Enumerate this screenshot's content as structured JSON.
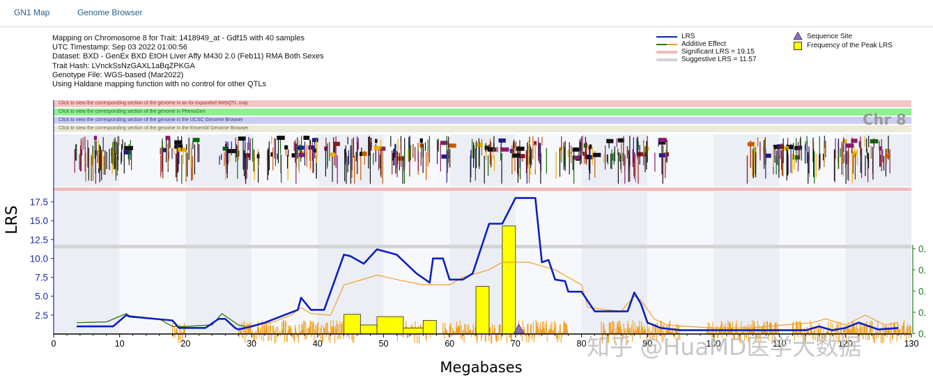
{
  "tabs": [
    {
      "label": "GN1 Map"
    },
    {
      "label": "Genome Browser"
    }
  ],
  "meta_lines": [
    "Mapping on Chromosome 8 for Trait: 1418949_at - Gdf15 with 40 samples",
    "UTC Timestamp: Sep 03 2022 01:00:56",
    "Dataset: BXD - GenEx BXD EtOH Liver Affy M430 2.0 (Feb11) RMA Both Sexes",
    "Trait Hash: LVnckSsNzGAXL1aBqZPKGA",
    "Genotype File: WGS-based (Mar2022)",
    "Using Haldane mapping function with no control for other QTLs"
  ],
  "legend": {
    "lrs": "LRS",
    "additive": "Additive Effect",
    "significant": "Significant LRS = 19.15",
    "suggestive": "Suggestive LRS = 11.57",
    "sequence_site": "Sequence Site",
    "peak_frequency": "Frequency of the Peak LRS"
  },
  "bands": [
    {
      "label": "Click to view the corresponding section of the genome in an 8x expanded WebQTL map",
      "color": "#f4c7c7"
    },
    {
      "label": "Click to view the corresponding section of the genome in PhenoGen",
      "color": "#8ff08f"
    },
    {
      "label": "Click to view the corresponding section of the genome in the UCSC Genome Browser",
      "color": "#c9cdf0"
    },
    {
      "label": "Click to view the corresponding section of the genome in the Ensembl Genome Browser",
      "color": "#ecebd9"
    }
  ],
  "chr_label": "Chr 8",
  "watermark": "知乎 @HuaMD医学大数据",
  "colors": {
    "lrs": "#0a1fbf",
    "additive_green": "#1a7a1a",
    "additive_orange": "#f0a020",
    "significant": "#f2b8b8",
    "suggestive": "#d3d3d3",
    "peak_bar": "#ffff00",
    "axis_left": "#1a2b9a",
    "axis_right": "#1a7a1a",
    "marker": "#8e6cc9"
  },
  "chart_data": {
    "type": "line",
    "title": "",
    "xlabel": "Megabases",
    "ylabel": "LRS",
    "xlim": [
      0,
      130
    ],
    "ylim": [
      0,
      19
    ],
    "x_ticks": [
      0,
      10,
      20,
      30,
      40,
      50,
      60,
      70,
      80,
      90,
      100,
      110,
      120,
      130
    ],
    "x_tick_labels": [
      "0",
      "10",
      "20",
      "30",
      "40",
      "50",
      "60",
      "70",
      "80",
      "90",
      "100",
      "110",
      "120",
      "130"
    ],
    "y_ticks": [
      2.5,
      5.0,
      7.5,
      10.0,
      12.5,
      15.0,
      17.5
    ],
    "y_tick_labels": [
      "2.5",
      "5.0",
      "7.5",
      "10.0",
      "12.5",
      "15.0",
      "17.5"
    ],
    "right_tick_labels": [
      "0.",
      "0.",
      "0.",
      "0.",
      "0."
    ],
    "significant_lrs": 19.15,
    "suggestive_lrs": 11.57,
    "series": [
      {
        "name": "LRS",
        "x": [
          3.5,
          9,
          11,
          11.5,
          18,
          19,
          21,
          23,
          25,
          26,
          27.5,
          28,
          30,
          32,
          37,
          37.5,
          39,
          41,
          44,
          45,
          47,
          49,
          52,
          55,
          57,
          57.5,
          59,
          60,
          62,
          63.5,
          66,
          68,
          70,
          73,
          74,
          75,
          76,
          77.5,
          78,
          80,
          82,
          87,
          88,
          89,
          90,
          92,
          95,
          100,
          110,
          114,
          116,
          118,
          120,
          122,
          125,
          128
        ],
        "y": [
          1.0,
          1.0,
          2.5,
          2.3,
          1.8,
          0.8,
          0.8,
          0.8,
          2.0,
          2.0,
          0.8,
          0.6,
          1.0,
          1.5,
          3.2,
          4.8,
          3.2,
          3.2,
          10.5,
          10.3,
          9.3,
          11.2,
          10.5,
          8.0,
          6.8,
          10.0,
          10.0,
          7.2,
          7.2,
          8.0,
          14.6,
          14.6,
          18.0,
          18.0,
          9.5,
          9.8,
          7.2,
          7.0,
          5.6,
          5.6,
          3.0,
          3.0,
          5.5,
          4.0,
          1.5,
          0.8,
          0.5,
          0.5,
          0.5,
          0.5,
          1.0,
          0.5,
          0.8,
          1.5,
          0.6,
          0.8
        ]
      },
      {
        "name": "Additive Effect",
        "x": [
          3.5,
          8,
          11,
          11.5,
          16,
          18,
          20,
          24,
          25.5,
          28,
          29,
          33,
          36,
          37.5,
          39,
          42,
          44,
          46,
          49,
          52,
          56,
          57.5,
          60,
          62,
          66,
          68,
          72,
          76,
          78,
          80,
          81,
          86,
          88,
          89,
          91,
          93,
          96,
          100,
          106,
          108,
          115,
          117,
          120,
          123,
          126,
          128
        ],
        "y": [
          1.5,
          1.6,
          2.7,
          2.4,
          2.0,
          1.0,
          1.0,
          1.2,
          2.7,
          1.2,
          1.0,
          1.5,
          2.5,
          3.5,
          2.7,
          2.5,
          6.5,
          7.0,
          7.8,
          7.2,
          6.5,
          6.5,
          6.5,
          7.5,
          8.5,
          9.5,
          9.5,
          8.5,
          7.5,
          6.5,
          3.5,
          3.0,
          5.0,
          4.5,
          2.0,
          1.2,
          1.0,
          0.8,
          0.8,
          1.0,
          1.5,
          2.0,
          1.2,
          2.5,
          1.2,
          1.5
        ]
      }
    ],
    "peak_frequency": {
      "x_start": [
        44,
        46.5,
        49,
        53,
        56,
        64,
        68
      ],
      "x_end": [
        46.5,
        49,
        53,
        56,
        58,
        66,
        70
      ],
      "height": [
        2.6,
        1.2,
        2.3,
        0.8,
        1.8,
        6.3,
        14.3
      ]
    },
    "sequence_site_x": [
      70.5
    ]
  }
}
